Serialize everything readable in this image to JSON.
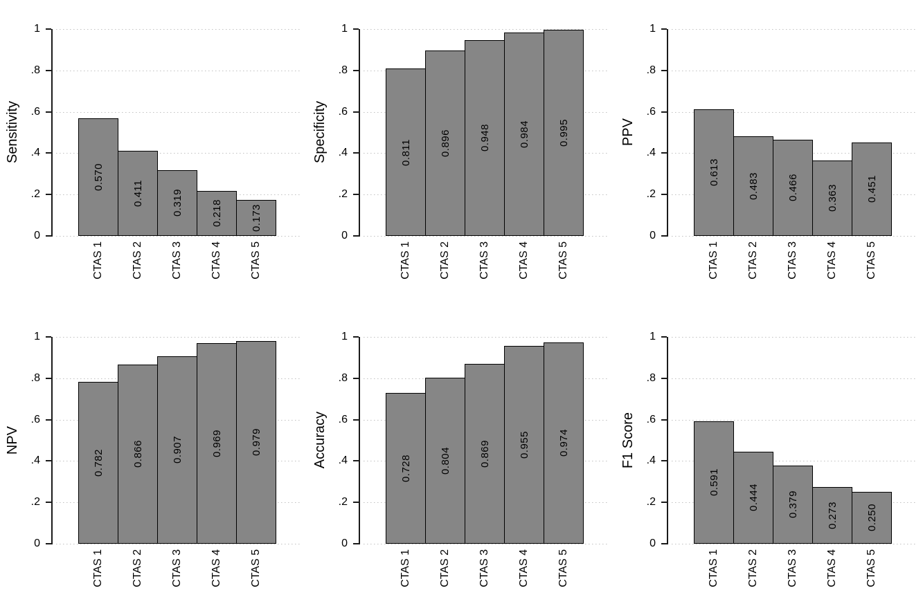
{
  "palette": {
    "background": "#ffffff",
    "bar_fill": "#868686",
    "bar_border": "#000000",
    "axis_color": "#1a1a1a",
    "grid_color": "#c0c0c0",
    "text_color": "#000000"
  },
  "chart_data": [
    {
      "type": "bar",
      "ylabel": "Sensitivity",
      "xlabel": "",
      "categories": [
        "CTAS 1",
        "CTAS 2",
        "CTAS 3",
        "CTAS 4",
        "CTAS 5"
      ],
      "values": [
        0.57,
        0.411,
        0.319,
        0.218,
        0.173
      ],
      "bar_labels": [
        "0.570",
        "0.411",
        "0.319",
        "0.218",
        "0.173"
      ],
      "ylim": [
        0,
        1
      ],
      "yticks": [
        0,
        0.2,
        0.4,
        0.6,
        0.8,
        1
      ],
      "ytick_labels": [
        "0",
        ".2",
        ".4",
        ".6",
        ".8",
        "1"
      ],
      "grid": "horizontal-dotted",
      "legend": "none"
    },
    {
      "type": "bar",
      "ylabel": "Specificity",
      "xlabel": "",
      "categories": [
        "CTAS 1",
        "CTAS 2",
        "CTAS 3",
        "CTAS 4",
        "CTAS 5"
      ],
      "values": [
        0.811,
        0.896,
        0.948,
        0.984,
        0.995
      ],
      "bar_labels": [
        "0.811",
        "0.896",
        "0.948",
        "0.984",
        "0.995"
      ],
      "ylim": [
        0,
        1
      ],
      "yticks": [
        0,
        0.2,
        0.4,
        0.6,
        0.8,
        1
      ],
      "ytick_labels": [
        "0",
        ".2",
        ".4",
        ".6",
        ".8",
        "1"
      ],
      "grid": "horizontal-dotted",
      "legend": "none"
    },
    {
      "type": "bar",
      "ylabel": "PPV",
      "xlabel": "",
      "categories": [
        "CTAS 1",
        "CTAS 2",
        "CTAS 3",
        "CTAS 4",
        "CTAS 5"
      ],
      "values": [
        0.613,
        0.483,
        0.466,
        0.363,
        0.451
      ],
      "bar_labels": [
        "0.613",
        "0.483",
        "0.466",
        "0.363",
        "0.451"
      ],
      "ylim": [
        0,
        1
      ],
      "yticks": [
        0,
        0.2,
        0.4,
        0.6,
        0.8,
        1
      ],
      "ytick_labels": [
        "0",
        ".2",
        ".4",
        ".6",
        ".8",
        "1"
      ],
      "grid": "horizontal-dotted",
      "legend": "none"
    },
    {
      "type": "bar",
      "ylabel": "NPV",
      "xlabel": "",
      "categories": [
        "CTAS 1",
        "CTAS 2",
        "CTAS 3",
        "CTAS 4",
        "CTAS 5"
      ],
      "values": [
        0.782,
        0.866,
        0.907,
        0.969,
        0.979
      ],
      "bar_labels": [
        "0.782",
        "0.866",
        "0.907",
        "0.969",
        "0.979"
      ],
      "ylim": [
        0,
        1
      ],
      "yticks": [
        0,
        0.2,
        0.4,
        0.6,
        0.8,
        1
      ],
      "ytick_labels": [
        "0",
        ".2",
        ".4",
        ".6",
        ".8",
        "1"
      ],
      "grid": "horizontal-dotted",
      "legend": "none"
    },
    {
      "type": "bar",
      "ylabel": "Accuracy",
      "xlabel": "",
      "categories": [
        "CTAS 1",
        "CTAS 2",
        "CTAS 3",
        "CTAS 4",
        "CTAS 5"
      ],
      "values": [
        0.728,
        0.804,
        0.869,
        0.955,
        0.974
      ],
      "bar_labels": [
        "0.728",
        "0.804",
        "0.869",
        "0.955",
        "0.974"
      ],
      "ylim": [
        0,
        1
      ],
      "yticks": [
        0,
        0.2,
        0.4,
        0.6,
        0.8,
        1
      ],
      "ytick_labels": [
        "0",
        ".2",
        ".4",
        ".6",
        ".8",
        "1"
      ],
      "grid": "horizontal-dotted",
      "legend": "none"
    },
    {
      "type": "bar",
      "ylabel": "F1 Score",
      "xlabel": "",
      "categories": [
        "CTAS 1",
        "CTAS 2",
        "CTAS 3",
        "CTAS 4",
        "CTAS 5"
      ],
      "values": [
        0.591,
        0.444,
        0.379,
        0.273,
        0.25
      ],
      "bar_labels": [
        "0.591",
        "0.444",
        "0.379",
        "0.273",
        "0.250"
      ],
      "ylim": [
        0,
        1
      ],
      "yticks": [
        0,
        0.2,
        0.4,
        0.6,
        0.8,
        1
      ],
      "ytick_labels": [
        "0",
        ".2",
        ".4",
        ".6",
        ".8",
        "1"
      ],
      "grid": "horizontal-dotted",
      "legend": "none"
    }
  ]
}
